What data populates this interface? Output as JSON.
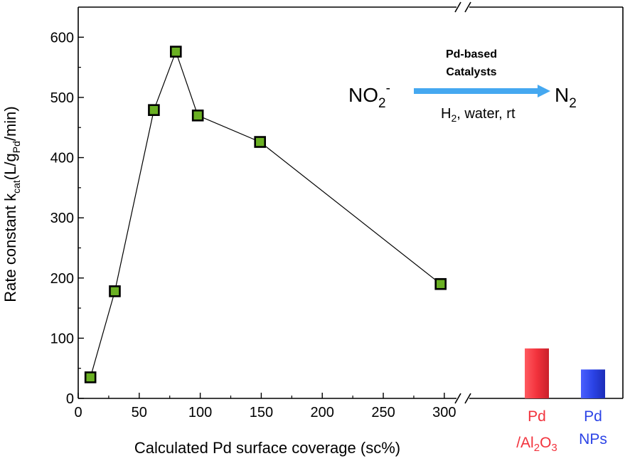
{
  "chart_data": {
    "type": "scatter",
    "xlabel": "Calculated Pd surface coverage (sc%)",
    "ylabel_main": "Rate constant k",
    "ylabel_sub1": "cat",
    "ylabel_mid": "(L/g",
    "ylabel_sub2": "Pd",
    "ylabel_end": "/min)",
    "xlim": [
      0,
      310
    ],
    "ylim": [
      0,
      650
    ],
    "xticks": [
      0,
      50,
      100,
      150,
      200,
      250,
      300
    ],
    "yticks": [
      0,
      100,
      200,
      300,
      400,
      500,
      600
    ],
    "series": [
      {
        "x": [
          10,
          30,
          62,
          80,
          98,
          149,
          297
        ],
        "y": [
          35,
          178,
          479,
          576,
          470,
          426,
          190
        ],
        "color": "#6ab023",
        "marker": "square",
        "connected": true
      }
    ],
    "reference_bars": [
      {
        "label_line1": "Pd",
        "label_line2_pre": "/Al",
        "label_line2_sub1": "2",
        "label_line2_mid": "O",
        "label_line2_sub2": "3",
        "value": 83,
        "color": "#f2323c"
      },
      {
        "label_line1": "Pd",
        "label_line2": "NPs",
        "value": 48,
        "color": "#2b43e6"
      }
    ],
    "annotation": {
      "reactant": "NO",
      "reactant_sub": "2",
      "reactant_sup": "-",
      "product": "N",
      "product_sub": "2",
      "catalyst_line1": "Pd-based",
      "catalyst_line2": "Catalysts",
      "conditions_pre": "H",
      "conditions_sub": "2",
      "conditions_post": ", water, rt",
      "arrow_color": "#45a8f0"
    }
  }
}
